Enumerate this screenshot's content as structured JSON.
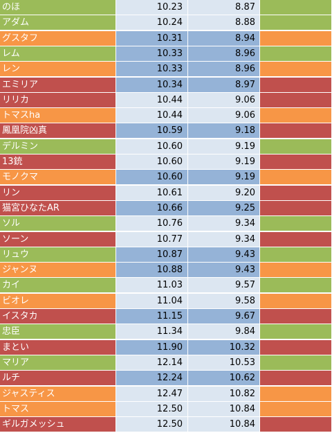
{
  "colors": {
    "green": "#9bbb59",
    "orange": "#f79646",
    "red": "#c0504d",
    "light_blue": "#dce6f1",
    "mid_blue": "#95b3d7",
    "divider": "#ffffff",
    "value_text": "#000000",
    "name_text": "#ffffff"
  },
  "rows": [
    {
      "name": "のほ",
      "v1": "10.23",
      "v2": "8.87",
      "name_color": "#9bbb59",
      "value_bg": "#dce6f1",
      "flag_color": "#9bbb59"
    },
    {
      "name": "アダム",
      "v1": "10.24",
      "v2": "8.88",
      "name_color": "#9bbb59",
      "value_bg": "#dce6f1",
      "flag_color": "#9bbb59"
    },
    {
      "name": "グスタフ",
      "v1": "10.31",
      "v2": "8.94",
      "name_color": "#f79646",
      "value_bg": "#95b3d7",
      "flag_color": "#f79646"
    },
    {
      "name": "レム",
      "v1": "10.33",
      "v2": "8.96",
      "name_color": "#9bbb59",
      "value_bg": "#95b3d7",
      "flag_color": "#9bbb59"
    },
    {
      "name": "レン",
      "v1": "10.33",
      "v2": "8.96",
      "name_color": "#f79646",
      "value_bg": "#95b3d7",
      "flag_color": "#f79646"
    },
    {
      "name": "エミリア",
      "v1": "10.34",
      "v2": "8.97",
      "name_color": "#c0504d",
      "value_bg": "#95b3d7",
      "flag_color": "#c0504d"
    },
    {
      "name": "リリカ",
      "v1": "10.44",
      "v2": "9.06",
      "name_color": "#c0504d",
      "value_bg": "#dce6f1",
      "flag_color": "#c0504d"
    },
    {
      "name": "トマスha",
      "v1": "10.44",
      "v2": "9.06",
      "name_color": "#f79646",
      "value_bg": "#dce6f1",
      "flag_color": "#f79646"
    },
    {
      "name": "鳳凰院凶真",
      "v1": "10.59",
      "v2": "9.18",
      "name_color": "#c0504d",
      "value_bg": "#95b3d7",
      "flag_color": "#c0504d"
    },
    {
      "name": "デルミン",
      "v1": "10.60",
      "v2": "9.19",
      "name_color": "#9bbb59",
      "value_bg": "#dce6f1",
      "flag_color": "#9bbb59"
    },
    {
      "name": "13銃",
      "v1": "10.60",
      "v2": "9.19",
      "name_color": "#c0504d",
      "value_bg": "#dce6f1",
      "flag_color": "#c0504d"
    },
    {
      "name": "モノクマ",
      "v1": "10.60",
      "v2": "9.19",
      "name_color": "#f79646",
      "value_bg": "#95b3d7",
      "flag_color": "#f79646"
    },
    {
      "name": "リン",
      "v1": "10.61",
      "v2": "9.20",
      "name_color": "#c0504d",
      "value_bg": "#dce6f1",
      "flag_color": "#c0504d"
    },
    {
      "name": "猫宮ひなたAR",
      "v1": "10.66",
      "v2": "9.25",
      "name_color": "#c0504d",
      "value_bg": "#95b3d7",
      "flag_color": "#c0504d"
    },
    {
      "name": "ソル",
      "v1": "10.76",
      "v2": "9.34",
      "name_color": "#9bbb59",
      "value_bg": "#dce6f1",
      "flag_color": "#9bbb59"
    },
    {
      "name": "ソーン",
      "v1": "10.77",
      "v2": "9.34",
      "name_color": "#c0504d",
      "value_bg": "#dce6f1",
      "flag_color": "#c0504d"
    },
    {
      "name": "リュウ",
      "v1": "10.87",
      "v2": "9.43",
      "name_color": "#9bbb59",
      "value_bg": "#95b3d7",
      "flag_color": "#9bbb59"
    },
    {
      "name": "ジャンヌ",
      "v1": "10.88",
      "v2": "9.43",
      "name_color": "#f79646",
      "value_bg": "#95b3d7",
      "flag_color": "#f79646"
    },
    {
      "name": "カイ",
      "v1": "11.03",
      "v2": "9.57",
      "name_color": "#9bbb59",
      "value_bg": "#dce6f1",
      "flag_color": "#9bbb59"
    },
    {
      "name": "ビオレ",
      "v1": "11.04",
      "v2": "9.58",
      "name_color": "#f79646",
      "value_bg": "#dce6f1",
      "flag_color": "#f79646"
    },
    {
      "name": "イスタカ",
      "v1": "11.15",
      "v2": "9.67",
      "name_color": "#c0504d",
      "value_bg": "#95b3d7",
      "flag_color": "#c0504d"
    },
    {
      "name": "忠臣",
      "v1": "11.34",
      "v2": "9.84",
      "name_color": "#9bbb59",
      "value_bg": "#dce6f1",
      "flag_color": "#9bbb59"
    },
    {
      "name": "まとい",
      "v1": "11.90",
      "v2": "10.32",
      "name_color": "#c0504d",
      "value_bg": "#95b3d7",
      "flag_color": "#c0504d"
    },
    {
      "name": "マリア",
      "v1": "12.14",
      "v2": "10.53",
      "name_color": "#9bbb59",
      "value_bg": "#dce6f1",
      "flag_color": "#9bbb59"
    },
    {
      "name": "ルチ",
      "v1": "12.24",
      "v2": "10.62",
      "name_color": "#c0504d",
      "value_bg": "#95b3d7",
      "flag_color": "#c0504d"
    },
    {
      "name": "ジャスティス",
      "v1": "12.47",
      "v2": "10.82",
      "name_color": "#f79646",
      "value_bg": "#dce6f1",
      "flag_color": "#f79646"
    },
    {
      "name": "トマス",
      "v1": "12.50",
      "v2": "10.84",
      "name_color": "#f79646",
      "value_bg": "#dce6f1",
      "flag_color": "#f79646"
    },
    {
      "name": "ギルガメッシュ",
      "v1": "12.50",
      "v2": "10.84",
      "name_color": "#c0504d",
      "value_bg": "#dce6f1",
      "flag_color": "#c0504d"
    }
  ]
}
